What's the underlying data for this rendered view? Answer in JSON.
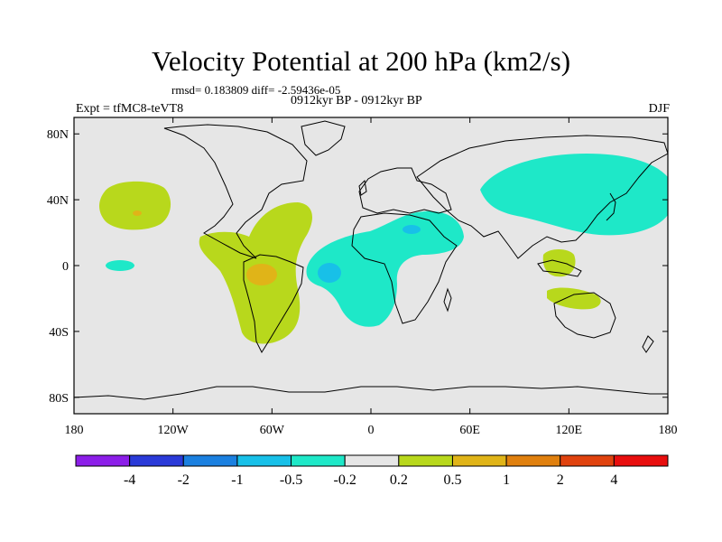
{
  "title": "Velocity Potential at 200 hPa (km2/s)",
  "stats_line": "rmsd= 0.183809  diff= -2.59436e-05",
  "period_line": "0912kyr BP - 0912kyr BP",
  "experiment_label": "Expt = tfMC8-teVT8",
  "season_label": "DJF",
  "lat_labels": [
    "80N",
    "40N",
    "0",
    "40S",
    "80S"
  ],
  "lon_labels": [
    "180",
    "120W",
    "60W",
    "0",
    "60E",
    "120E",
    "180"
  ],
  "colorbar": {
    "colors": [
      "#8c1ee8",
      "#2a3ad8",
      "#1b80e0",
      "#18c0e8",
      "#1ee8c8",
      "#e6e6e6",
      "#b8d81c",
      "#e0b418",
      "#e0800e",
      "#e0420e",
      "#e80e0e"
    ],
    "labels": [
      "-4",
      "-2",
      "-1",
      "-0.5",
      "-0.2",
      "0.2",
      "0.5",
      "1",
      "2",
      "4"
    ]
  },
  "colors": {
    "background": "#e6e6e6",
    "neg_low": "#1ee8c8",
    "neg_mid": "#18c0e8",
    "pos_low": "#b8d81c",
    "pos_mid": "#e0b418"
  }
}
